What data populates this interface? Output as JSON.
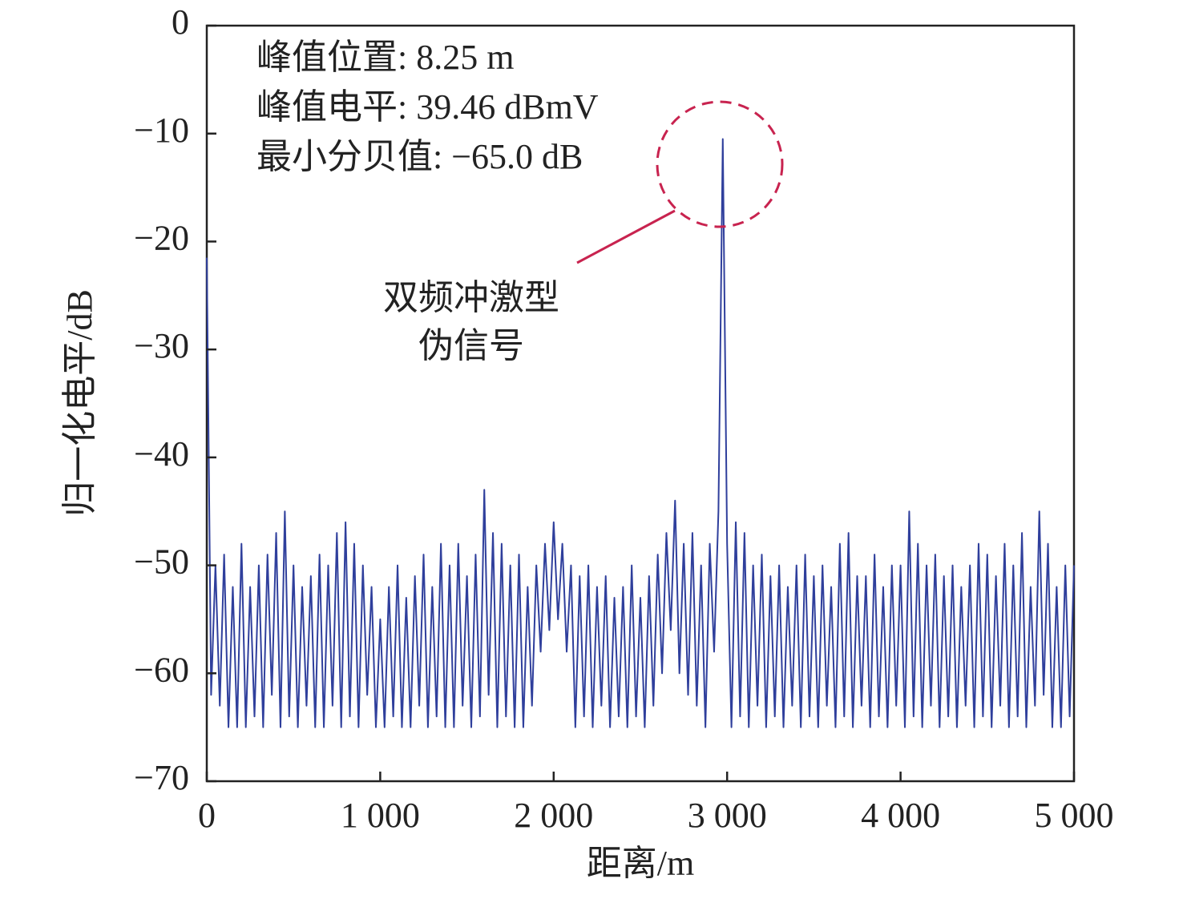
{
  "chart_data": {
    "type": "line",
    "xlabel": "距离/m",
    "ylabel": "归一化电平/dB",
    "annotations": [
      "峰值位置: 8.25 m",
      "峰值电平: 39.46 dBmV",
      "最小分贝值: −65.0 dB",
      "双频冲激型",
      "伪信号"
    ],
    "xlim": [
      0,
      5000
    ],
    "ylim": [
      -70,
      0
    ],
    "xticks": [
      0,
      {
        "value": 1000,
        "label": "1 000"
      },
      {
        "value": 2000,
        "label": "2 000"
      },
      {
        "value": 3000,
        "label": "3 000"
      },
      {
        "value": 4000,
        "label": "4 000"
      },
      {
        "value": 5000,
        "label": "5 000"
      }
    ],
    "yticks": [
      0,
      {
        "value": -10,
        "label": "−10"
      },
      {
        "value": -20,
        "label": "−20"
      },
      {
        "value": -30,
        "label": "−30"
      },
      {
        "value": -40,
        "label": "−40"
      },
      {
        "value": -50,
        "label": "−50"
      },
      {
        "value": -60,
        "label": "−60"
      },
      {
        "value": -70,
        "label": "−70"
      }
    ],
    "grid": false,
    "x": [
      0,
      25,
      50,
      75,
      100,
      125,
      150,
      175,
      200,
      225,
      250,
      275,
      300,
      325,
      350,
      375,
      400,
      425,
      450,
      475,
      500,
      525,
      550,
      575,
      600,
      625,
      650,
      675,
      700,
      725,
      750,
      775,
      800,
      825,
      850,
      875,
      900,
      925,
      950,
      975,
      1000,
      1025,
      1050,
      1075,
      1100,
      1125,
      1150,
      1175,
      1200,
      1225,
      1250,
      1275,
      1300,
      1325,
      1350,
      1375,
      1400,
      1425,
      1450,
      1475,
      1500,
      1525,
      1550,
      1575,
      1600,
      1625,
      1650,
      1675,
      1700,
      1725,
      1750,
      1775,
      1800,
      1825,
      1850,
      1875,
      1900,
      1925,
      1950,
      1975,
      2000,
      2025,
      2050,
      2075,
      2100,
      2125,
      2150,
      2175,
      2200,
      2225,
      2250,
      2275,
      2300,
      2325,
      2350,
      2375,
      2400,
      2425,
      2450,
      2475,
      2500,
      2525,
      2550,
      2575,
      2600,
      2625,
      2650,
      2675,
      2700,
      2725,
      2750,
      2775,
      2800,
      2825,
      2850,
      2875,
      2900,
      2925,
      2950,
      2975,
      3000,
      3025,
      3050,
      3075,
      3100,
      3125,
      3150,
      3175,
      3200,
      3225,
      3250,
      3275,
      3300,
      3325,
      3350,
      3375,
      3400,
      3425,
      3450,
      3475,
      3500,
      3525,
      3550,
      3575,
      3600,
      3625,
      3650,
      3675,
      3700,
      3725,
      3750,
      3775,
      3800,
      3825,
      3850,
      3875,
      3900,
      3925,
      3950,
      3975,
      4000,
      4025,
      4050,
      4075,
      4100,
      4125,
      4150,
      4175,
      4200,
      4225,
      4250,
      4275,
      4300,
      4325,
      4350,
      4375,
      4400,
      4425,
      4450,
      4475,
      4500,
      4525,
      4550,
      4575,
      4600,
      4625,
      4650,
      4675,
      4700,
      4725,
      4750,
      4775,
      4800,
      4825,
      4850,
      4875,
      4900,
      4925,
      4950,
      4975,
      5000
    ],
    "series": [
      {
        "color": "#2f3f9c",
        "values": [
          -21.5,
          -62,
          -50,
          -63,
          -49,
          -65,
          -52,
          -65,
          -48,
          -65,
          -52,
          -64,
          -50,
          -65,
          -49,
          -62,
          -47,
          -65,
          -45,
          -64,
          -50,
          -65,
          -52,
          -63,
          -51,
          -65,
          -49,
          -65,
          -50,
          -63,
          -47,
          -65,
          -46,
          -64,
          -48,
          -65,
          -50,
          -62,
          -52,
          -65,
          -55,
          -65,
          -52,
          -64,
          -50,
          -65,
          -53,
          -65,
          -51,
          -63,
          -49,
          -65,
          -52,
          -64,
          -48,
          -65,
          -50,
          -65,
          -48,
          -63,
          -51,
          -65,
          -49,
          -64,
          -43,
          -62,
          -47,
          -65,
          -48,
          -64,
          -50,
          -65,
          -49,
          -65,
          -52,
          -63,
          -50,
          -58,
          -48,
          -56,
          -46,
          -55,
          -48,
          -58,
          -50,
          -65,
          -51,
          -64,
          -50,
          -65,
          -52,
          -63,
          -51,
          -65,
          -53,
          -64,
          -52,
          -65,
          -50,
          -64,
          -53,
          -65,
          -51,
          -63,
          -49,
          -60,
          -47,
          -56,
          -44,
          -60,
          -48,
          -62,
          -47,
          -63,
          -50,
          -65,
          -48,
          -58,
          -45,
          -10.5,
          -48,
          -65,
          -46,
          -64,
          -47,
          -65,
          -50,
          -63,
          -49,
          -65,
          -51,
          -64,
          -50,
          -65,
          -52,
          -63,
          -50,
          -65,
          -49,
          -64,
          -51,
          -65,
          -50,
          -63,
          -52,
          -65,
          -48,
          -64,
          -47,
          -65,
          -51,
          -63,
          -51,
          -65,
          -49,
          -64,
          -52,
          -65,
          -50,
          -63,
          -50,
          -65,
          -45,
          -64,
          -48,
          -65,
          -50,
          -63,
          -49,
          -65,
          -51,
          -64,
          -50,
          -65,
          -52,
          -63,
          -50,
          -65,
          -48,
          -64,
          -49,
          -65,
          -51,
          -63,
          -48,
          -65,
          -50,
          -64,
          -47,
          -65,
          -52,
          -63,
          -45,
          -62,
          -48,
          -65,
          -52,
          -65,
          -50,
          -64,
          -50
        ]
      }
    ]
  }
}
